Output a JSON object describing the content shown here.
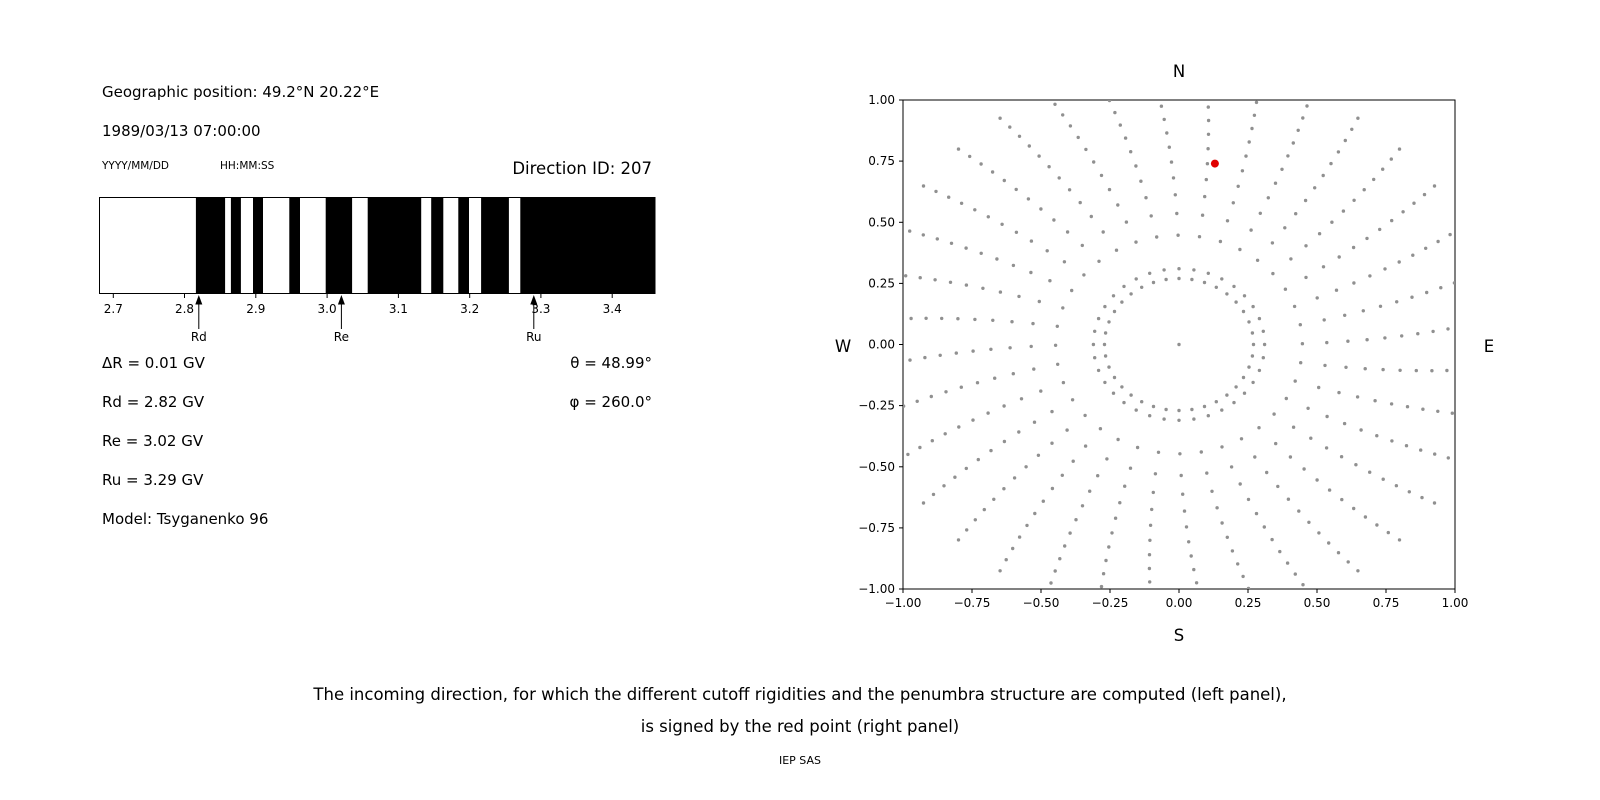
{
  "left_panel": {
    "geo_position": "Geographic position: 49.2°N 20.22°E",
    "datetime": "1989/03/13 07:00:00",
    "date_format_label": "YYYY/MM/DD",
    "time_format_label": "HH:MM:SS",
    "direction_id": "Direction ID: 207",
    "info_lines": [
      "ΔR = 0.01 GV",
      "Rd = 2.82 GV",
      "Re = 3.02 GV",
      "Ru = 3.29 GV",
      "Model: Tsyganenko 96"
    ],
    "theta": "θ = 48.99°",
    "phi": "φ = 260.0°"
  },
  "caption": {
    "line1": "The incoming direction, for which the different cutoff rigidities and the penumbra structure are computed (left panel),",
    "line2": "is signed by the red point (right panel)"
  },
  "footer": "IEP SAS",
  "chart_data": [
    {
      "type": "bar",
      "name": "penumbra-spectrum",
      "title": "",
      "xlabel": "",
      "ylabel": "",
      "x_range": [
        2.68,
        3.46
      ],
      "x_tick_values": [
        2.7,
        2.8,
        2.9,
        3.0,
        3.1,
        3.2,
        3.3,
        3.4
      ],
      "x_ticks": [
        "2.7",
        "2.8",
        "2.9",
        "3.0",
        "3.1",
        "3.2",
        "3.3",
        "3.4"
      ],
      "bar_color": "#000000",
      "background": "#ffffff",
      "black_segments_gv": [
        [
          2.816,
          2.857
        ],
        [
          2.865,
          2.879
        ],
        [
          2.896,
          2.91
        ],
        [
          2.947,
          2.962
        ],
        [
          2.998,
          3.035
        ],
        [
          3.057,
          3.132
        ],
        [
          3.146,
          3.163
        ],
        [
          3.184,
          3.199
        ],
        [
          3.216,
          3.255
        ],
        [
          3.271,
          3.46
        ]
      ],
      "markers": [
        {
          "label": "Rd",
          "value": 2.82
        },
        {
          "label": "Re",
          "value": 3.02
        },
        {
          "label": "Ru",
          "value": 3.29
        }
      ]
    },
    {
      "type": "scatter",
      "name": "incoming-direction-map",
      "title": "",
      "xlim": [
        -1,
        1
      ],
      "ylim": [
        -1,
        1
      ],
      "x_tick_values": [
        -1,
        -0.75,
        -0.5,
        -0.25,
        0,
        0.25,
        0.5,
        0.75,
        1
      ],
      "x_ticks": [
        "−1.00",
        "−0.75",
        "−0.50",
        "−0.25",
        "0.00",
        "0.25",
        "0.50",
        "0.75",
        "1.00"
      ],
      "y_tick_values": [
        -1,
        -0.75,
        -0.5,
        -0.25,
        0,
        0.25,
        0.5,
        0.75,
        1
      ],
      "y_ticks": [
        "−1.00",
        "−0.75",
        "−0.50",
        "−0.25",
        "0.00",
        "0.25",
        "0.50",
        "0.75",
        "1.00"
      ],
      "compass": {
        "top": "N",
        "bottom": "S",
        "left": "W",
        "right": "E"
      },
      "dot_color": "#909090",
      "spokes": {
        "count": 36,
        "start_deg": 0,
        "step_deg": 10,
        "r_min": 0.31,
        "r_max": 1.13,
        "dots": 13,
        "power": 0.72,
        "twist_deg": 5
      },
      "ring": {
        "r": 0.27,
        "count": 36
      },
      "center_dot": true,
      "red_point": {
        "x": 0.13,
        "y": 0.74,
        "color": "#e00000"
      }
    }
  ]
}
